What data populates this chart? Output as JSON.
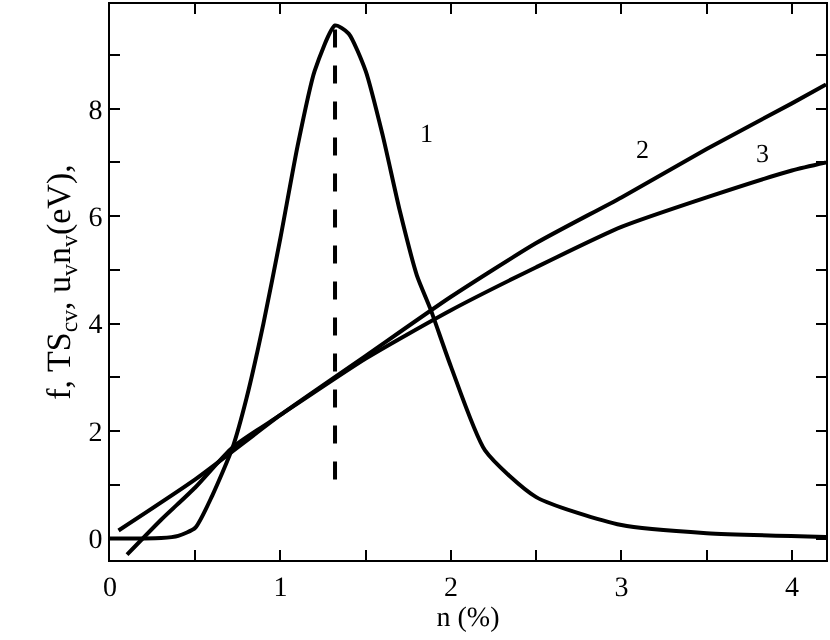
{
  "chart_data": {
    "type": "line",
    "xlabel": "n (%)",
    "ylabel": "f, TS$_{cv}$, u$_{v}$n$_{v}$(eV),",
    "xlim": [
      0,
      4.2
    ],
    "ylim": [
      -0.4,
      9.95
    ],
    "xticks": [
      0,
      {
        "value": 0.5,
        "label": null
      },
      1,
      {
        "value": 1.5,
        "label": null
      },
      2,
      {
        "value": 2.5,
        "label": null
      },
      3,
      {
        "value": 3.5,
        "label": null
      },
      4
    ],
    "yticks": [
      0,
      {
        "value": 1,
        "label": null
      },
      2,
      {
        "value": 3,
        "label": null
      },
      4,
      {
        "value": 5,
        "label": null
      },
      6,
      {
        "value": 7,
        "label": null
      },
      8,
      {
        "value": 9,
        "label": null
      }
    ],
    "grid": false,
    "legend": "right",
    "marker": "none",
    "line_style": "solid",
    "series": [
      {
        "name": "1",
        "color": "#000000",
        "x": [
          0,
          0.3,
          0.4,
          0.5,
          0.6,
          0.72,
          0.8,
          0.9,
          1.0,
          1.1,
          1.2,
          1.32,
          1.4,
          1.5,
          1.6,
          1.7,
          1.8,
          1.88,
          2.0,
          2.2,
          2.5,
          3.0,
          3.5,
          4.2
        ],
        "values": [
          0,
          0.01,
          0.05,
          0.2,
          0.8,
          1.7,
          2.6,
          4.0,
          5.6,
          7.3,
          8.7,
          9.55,
          9.4,
          8.7,
          7.5,
          6.1,
          4.9,
          4.27,
          3.2,
          1.64,
          0.77,
          0.25,
          0.1,
          0.03
        ]
      },
      {
        "name": "2",
        "color": "#000000",
        "x": [
          0.05,
          0.5,
          1.0,
          1.5,
          2.0,
          2.5,
          3.0,
          3.5,
          4.0,
          4.2
        ],
        "values": [
          0.15,
          1.1,
          2.3,
          3.4,
          4.5,
          5.5,
          6.35,
          7.25,
          8.1,
          8.45
        ]
      },
      {
        "name": "3",
        "color": "#000000",
        "x": [
          0.1,
          0.3,
          0.5,
          0.72,
          1.0,
          1.5,
          2.0,
          2.5,
          3.0,
          3.5,
          4.0,
          4.2
        ],
        "values": [
          -0.3,
          0.35,
          0.95,
          1.7,
          2.3,
          3.35,
          4.25,
          5.05,
          5.8,
          6.35,
          6.85,
          7.0
        ]
      },
      {
        "color": "#000000",
        "line_style": "dashed",
        "x": [
          1.32,
          1.32
        ],
        "values": [
          1.1,
          9.6
        ]
      }
    ]
  }
}
